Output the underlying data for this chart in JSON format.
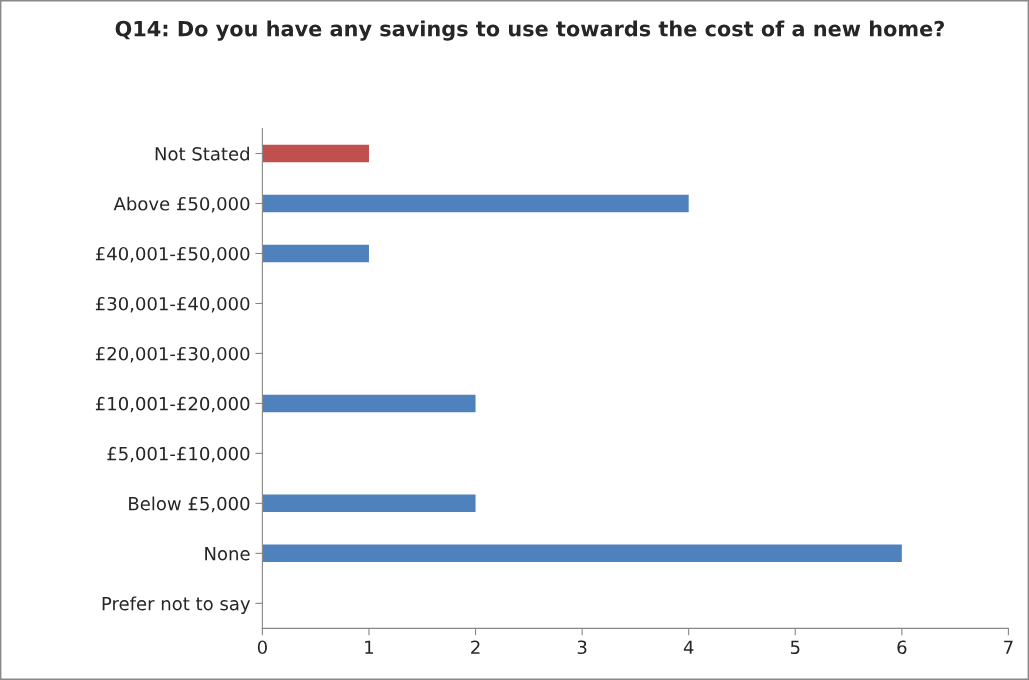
{
  "chart_data": {
    "type": "bar",
    "orientation": "horizontal",
    "title": "Q14: Do you have any savings to use towards the cost of a new home?",
    "categories": [
      "Not Stated",
      "Above £50,000",
      "£40,001-£50,000",
      "£30,001-£40,000",
      "£20,001-£30,000",
      "£10,001-£20,000",
      "£5,001-£10,000",
      "Below £5,000",
      "None",
      "Prefer not to say"
    ],
    "values": [
      1,
      4,
      1,
      0,
      0,
      2,
      0,
      2,
      6,
      0
    ],
    "colors": [
      "#c0504d",
      "#4f81bd",
      "#4f81bd",
      "#4f81bd",
      "#4f81bd",
      "#4f81bd",
      "#4f81bd",
      "#4f81bd",
      "#4f81bd",
      "#4f81bd"
    ],
    "xlim": [
      0,
      7
    ],
    "xticks": [
      0,
      1,
      2,
      3,
      4,
      5,
      6,
      7
    ],
    "grid": false,
    "legend": false
  }
}
